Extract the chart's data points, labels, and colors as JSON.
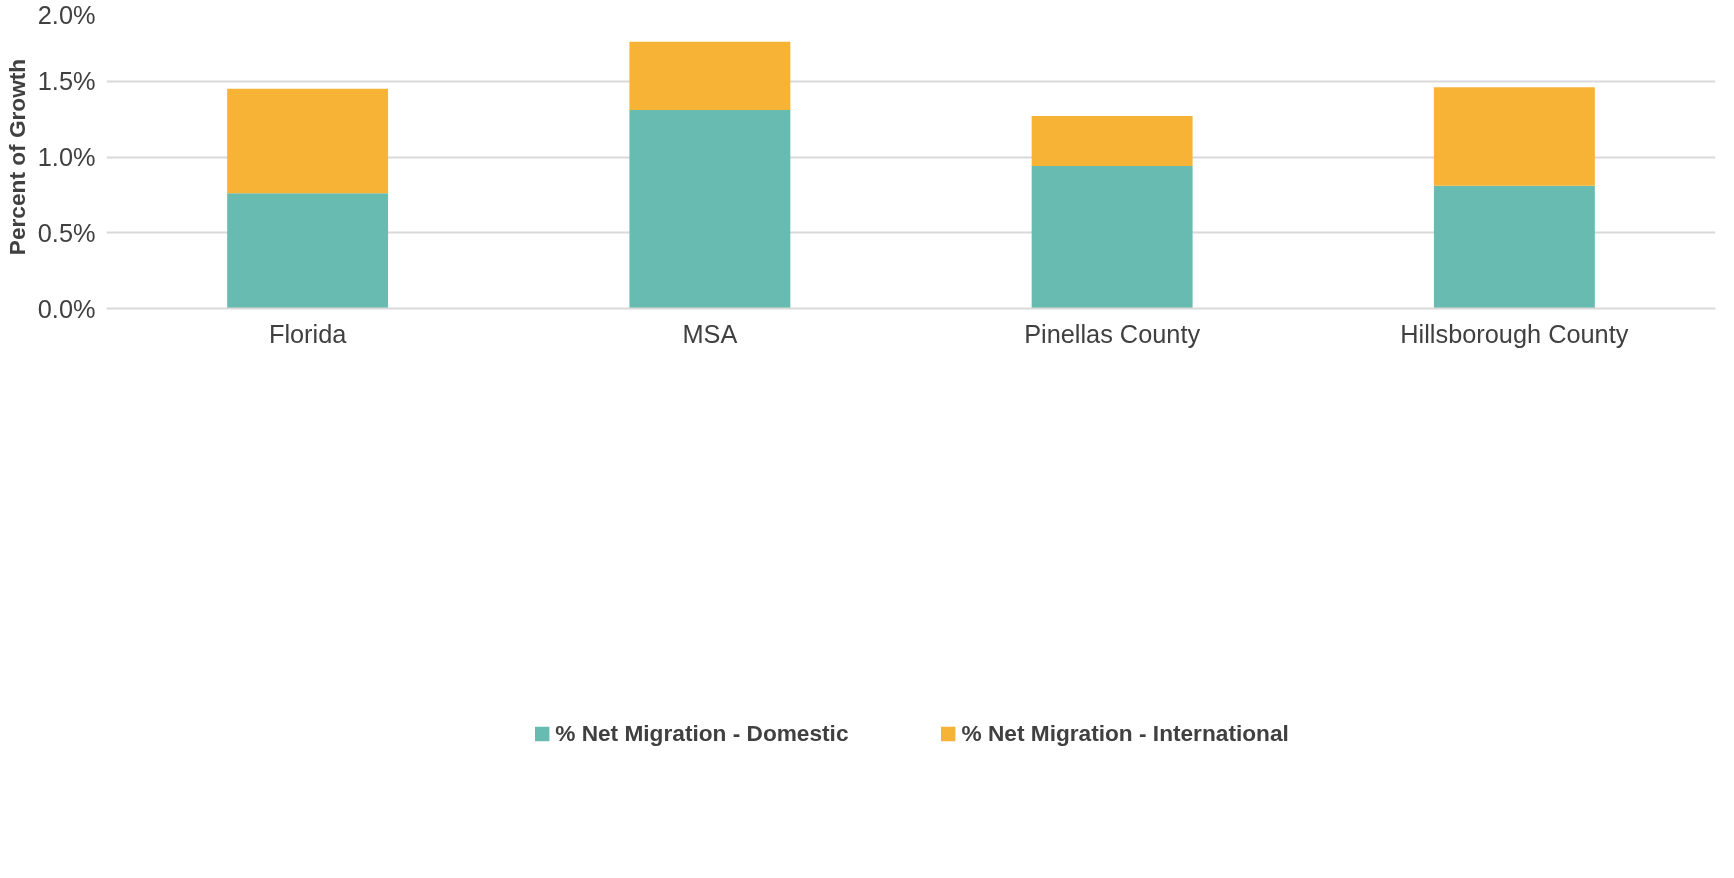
{
  "chart_data": {
    "type": "bar",
    "stacked": true,
    "ylabel": "Percent of Growth",
    "categories": [
      "Florida",
      "MSA",
      "Pinellas County",
      "Hillsborough County"
    ],
    "series": [
      {
        "name": "% Net Migration - Domestic",
        "color": "#68bbb0",
        "values": [
          0.76,
          1.31,
          0.94,
          0.81
        ]
      },
      {
        "name": "% Net Migration - International",
        "color": "#f6b335",
        "values": [
          0.69,
          0.45,
          0.33,
          0.65
        ]
      }
    ],
    "ylim": [
      0,
      2
    ],
    "yticks": [
      {
        "value": 0,
        "label": "0.0%"
      },
      {
        "value": 0.5,
        "label": "0.5%"
      },
      {
        "value": 1,
        "label": "1.0%"
      },
      {
        "value": 1.5,
        "label": "1.5%"
      },
      {
        "value": 2,
        "label": "2.0%"
      }
    ],
    "grid": "y",
    "legend": "bottom"
  }
}
